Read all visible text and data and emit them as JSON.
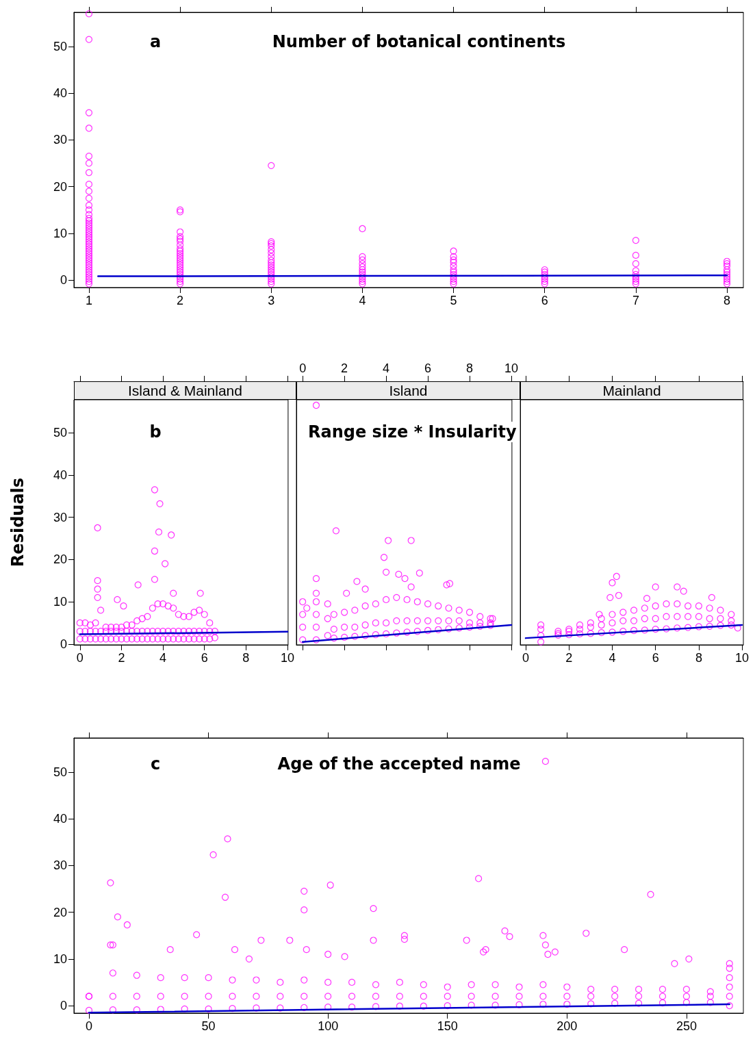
{
  "chart_data": [
    {
      "type": "scatter",
      "title": "Number of botanical continents",
      "annotations": [
        "a"
      ],
      "xlim": [
        0.835,
        8.18
      ],
      "xticks": [
        1,
        2,
        3,
        4,
        5,
        6,
        7,
        8
      ],
      "ylim": [
        -1.6,
        57.3
      ],
      "yticks": [
        0,
        10,
        20,
        30,
        40,
        50
      ],
      "marker": "circle",
      "series": [
        {
          "color": "#ff00ff",
          "x": [
            1,
            1,
            1,
            1,
            1,
            1,
            1,
            1,
            1,
            1,
            1,
            1,
            1,
            1,
            1,
            1,
            1,
            1,
            1,
            1,
            1,
            1,
            1,
            1,
            1,
            1,
            1,
            1,
            1,
            1,
            1,
            1,
            1,
            1,
            1,
            1,
            1,
            1,
            1,
            1,
            1,
            1,
            2,
            2,
            2,
            2,
            2,
            2,
            2,
            2,
            2,
            2,
            2,
            2,
            2,
            2,
            2,
            2,
            2,
            2,
            2,
            2,
            2,
            2,
            2,
            3,
            3,
            3,
            3,
            3,
            3,
            3,
            3,
            3,
            3,
            3,
            3,
            3,
            3,
            3,
            3,
            3,
            3,
            4,
            4,
            4,
            4,
            4,
            4,
            4,
            4,
            4,
            4,
            4,
            4,
            5,
            5,
            5,
            5,
            5,
            5,
            5,
            5,
            5,
            5,
            5,
            5,
            6,
            6,
            6,
            6,
            6,
            6,
            6,
            7,
            7,
            7,
            7,
            7,
            7,
            7,
            7,
            7,
            8,
            8,
            8,
            8,
            8,
            8,
            8,
            8,
            8,
            8
          ],
          "values": [
            -0.8,
            -0.3,
            0.2,
            0.7,
            1.2,
            1.7,
            2.2,
            2.7,
            3.2,
            3.7,
            4.2,
            4.7,
            5.2,
            5.7,
            6.2,
            6.7,
            7.2,
            7.7,
            8.2,
            8.7,
            9.2,
            9.7,
            10.2,
            10.7,
            11.2,
            11.7,
            12.2,
            12.7,
            13.2,
            14,
            15,
            16,
            17.5,
            19,
            20.5,
            23,
            25,
            26.5,
            32.5,
            35.8,
            51.5,
            57,
            -0.8,
            -0.3,
            0.2,
            0.7,
            1.2,
            1.7,
            2.2,
            2.7,
            3.2,
            3.7,
            4.2,
            4.7,
            5.2,
            5.7,
            6.2,
            6.7,
            7.5,
            8.3,
            8.8,
            9.3,
            10.3,
            14.6,
            15,
            -0.8,
            -0.3,
            0.2,
            0.7,
            1.2,
            1.7,
            2.2,
            2.7,
            3.2,
            3.7,
            4.2,
            5,
            5.8,
            6.5,
            7.3,
            7.8,
            8.2,
            24.5,
            -0.8,
            -0.3,
            0.2,
            0.7,
            1.2,
            1.7,
            2.2,
            2.8,
            3.5,
            4.3,
            5,
            11,
            -0.8,
            -0.3,
            0.2,
            0.7,
            1.2,
            1.7,
            2.2,
            3,
            3.8,
            4.3,
            5,
            6.2,
            -0.8,
            -0.3,
            0.2,
            0.7,
            1.2,
            1.7,
            2.2,
            -0.8,
            -0.3,
            0.2,
            0.7,
            1.2,
            2,
            3.5,
            5.3,
            8.5,
            -0.8,
            -0.3,
            0.2,
            0.7,
            1.2,
            1.7,
            2.2,
            3,
            3.5,
            4
          ]
        },
        {
          "type": "line",
          "marker": "none",
          "color": "#0000cc",
          "x": [
            1.1,
            8
          ],
          "values": [
            0.8,
            1.0
          ]
        }
      ]
    },
    {
      "type": "scatter",
      "title": "Island & Mainland",
      "ylabel": "Residuals",
      "annotations": [
        "b"
      ],
      "xlim": [
        -0.29,
        10.03
      ],
      "xticks": [
        0,
        2,
        4,
        6,
        8,
        10
      ],
      "ylim": [
        -0.2,
        57.8
      ],
      "yticks": [
        0,
        10,
        20,
        30,
        40,
        50
      ],
      "marker": "circle",
      "series": [
        {
          "color": "#ff00ff",
          "x": [
            0,
            0.25,
            0.5,
            0.75,
            1,
            1.25,
            1.5,
            1.75,
            2,
            2.25,
            2.5,
            2.75,
            3,
            3.25,
            3.5,
            3.75,
            4,
            4.25,
            4.5,
            4.75,
            5,
            5.25,
            5.5,
            5.75,
            6,
            6.25,
            0,
            0.25,
            0.5,
            0.75,
            1,
            1.25,
            1.5,
            1.75,
            2,
            2.25,
            2.5,
            2.75,
            3,
            3.25,
            3.5,
            3.75,
            4,
            4.25,
            4.5,
            4.75,
            5,
            5.25,
            5.5,
            5.75,
            6,
            6.25,
            0,
            0.25,
            0.5,
            0.75,
            1,
            1.25,
            1.5,
            1.75,
            2,
            2.25,
            2.5,
            2.75,
            3,
            3.25,
            3.5,
            3.75,
            4,
            4.25,
            4.5,
            4.75,
            5,
            5.25,
            5.5,
            5.75,
            6,
            6.25,
            0.85,
            0.85,
            0.85,
            0.85,
            3.6,
            3.85,
            3.8,
            4.4,
            3.6,
            4.1,
            3.6,
            2.8,
            1.8,
            2.1,
            5.8,
            4.5,
            6.5,
            6.5
          ],
          "values": [
            1.2,
            1.2,
            1.2,
            1.2,
            1.2,
            1.2,
            1.2,
            1.2,
            1.2,
            1.2,
            1.2,
            1.2,
            1.2,
            1.2,
            1.2,
            1.2,
            1.2,
            1.2,
            1.2,
            1.2,
            1.2,
            1.2,
            1.2,
            1.2,
            1.2,
            1.2,
            3,
            3,
            3,
            3,
            3,
            3,
            3,
            3,
            3,
            3,
            3,
            3,
            3,
            3,
            3,
            3,
            3,
            3,
            3,
            3,
            3,
            3,
            3,
            3,
            3,
            3,
            5,
            5,
            4.5,
            5,
            8,
            4,
            4,
            4,
            4,
            4.5,
            4.5,
            5.5,
            6,
            6.5,
            8.5,
            9.5,
            9.5,
            9,
            8.5,
            7,
            6.5,
            6.5,
            7.5,
            8,
            7,
            5,
            11,
            13,
            15,
            27.5,
            36.5,
            33.2,
            26.5,
            25.8,
            22,
            19,
            15.3,
            14,
            10.5,
            9,
            12,
            12,
            3,
            1.5
          ]
        },
        {
          "type": "line",
          "marker": "none",
          "color": "#0000cc",
          "x": [
            0,
            10
          ],
          "values": [
            2.3,
            2.9
          ]
        }
      ]
    },
    {
      "type": "scatter",
      "title": "Island",
      "annotations": [
        "Range size * Insularity"
      ],
      "tick_labels": "x",
      "xlim": [
        -0.3,
        10.03
      ],
      "xticks": [
        0,
        2,
        4,
        6,
        8,
        10
      ],
      "ylim": [
        -0.2,
        57.8
      ],
      "marker": "circle",
      "series": [
        {
          "color": "#ff00ff",
          "x": [
            1.5,
            2,
            2.5,
            3,
            3.5,
            4,
            4.5,
            5,
            5.5,
            6,
            6.5,
            7,
            7.5,
            8,
            8.5,
            9,
            1.5,
            2,
            2.5,
            3,
            3.5,
            4,
            4.5,
            5,
            5.5,
            6,
            6.5,
            7,
            7.5,
            8,
            8.5,
            9,
            1.5,
            2,
            2.5,
            3,
            3.5,
            4,
            4.5,
            5,
            5.5,
            6,
            6.5,
            7,
            7.5,
            8,
            8.5,
            9,
            0,
            0,
            0,
            0,
            0.2,
            0.65,
            0.65,
            0.65,
            0.65,
            0.65,
            0.65,
            0.65,
            1.2,
            1.2,
            1.2,
            1.6,
            4.1,
            5.2,
            3.9,
            4,
            4.6,
            4.9,
            5.6,
            5.2,
            6.9,
            7.05,
            2.1,
            2.6,
            3,
            9.1
          ],
          "values": [
            1.4,
            1.6,
            1.8,
            2,
            2.2,
            2.4,
            2.6,
            2.8,
            3,
            3.2,
            3.4,
            3.6,
            3.8,
            4,
            4.2,
            4.4,
            3.5,
            4,
            4,
            4.5,
            5,
            5,
            5.5,
            5.5,
            5.5,
            5.5,
            5.5,
            5.5,
            5.5,
            5,
            5,
            5,
            7,
            7.5,
            8,
            9,
            9.5,
            10.5,
            11,
            10.5,
            10,
            9.5,
            9,
            8.5,
            8,
            7.5,
            6.5,
            6,
            1,
            4,
            7,
            10,
            8.5,
            1,
            4,
            7,
            10,
            12,
            15.5,
            56.5,
            2,
            6,
            9.5,
            26.8,
            24.5,
            24.5,
            20.5,
            17,
            16.5,
            15.5,
            16.8,
            13.5,
            14,
            14.3,
            12,
            14.8,
            13,
            6
          ]
        },
        {
          "type": "line",
          "marker": "none",
          "color": "#0000cc",
          "x": [
            0,
            10
          ],
          "values": [
            0.5,
            4.5
          ]
        }
      ]
    },
    {
      "type": "scatter",
      "title": "Mainland",
      "tick_labels": "x",
      "xlim": [
        -0.25,
        10.06
      ],
      "xticks": [
        0,
        2,
        4,
        6,
        8,
        10
      ],
      "ylim": [
        -0.2,
        57.8
      ],
      "marker": "circle",
      "series": [
        {
          "color": "#ff00ff",
          "x": [
            1.5,
            2,
            2.5,
            3,
            3.5,
            4,
            4.5,
            5,
            5.5,
            6,
            6.5,
            7,
            7.5,
            8,
            8.5,
            9,
            9.5,
            1.5,
            2,
            2.5,
            3,
            3.5,
            4,
            4.5,
            5,
            5.5,
            6,
            6.5,
            7,
            7.5,
            8,
            8.5,
            9,
            9.5,
            1.5,
            2,
            2.5,
            3,
            3.5,
            4,
            4.5,
            5,
            5.5,
            6,
            6.5,
            7,
            7.5,
            8,
            8.5,
            9,
            9.5,
            0.7,
            0.7,
            0.7,
            0.7,
            4.2,
            4,
            3.9,
            4.3,
            6,
            7,
            7.3,
            8.6,
            5.6,
            3.4,
            9.8
          ],
          "values": [
            2.1,
            2.2,
            2.4,
            2.5,
            2.7,
            2.8,
            3,
            3.2,
            3.3,
            3.5,
            3.6,
            3.8,
            3.9,
            4.1,
            4.2,
            4.4,
            4.5,
            2.5,
            3,
            3.5,
            4,
            4.5,
            5,
            5.5,
            5.5,
            6,
            6,
            6.5,
            6.5,
            6.5,
            6.5,
            6,
            6,
            5.5,
            3,
            3.5,
            4.5,
            5,
            6,
            7,
            7.5,
            8,
            8.5,
            9,
            9.5,
            9.5,
            9,
            9,
            8.5,
            8,
            7,
            0.5,
            2,
            3.5,
            4.5,
            16,
            14.5,
            11,
            11.5,
            13.5,
            13.5,
            12.5,
            11,
            10.8,
            7,
            3.8
          ]
        },
        {
          "type": "line",
          "marker": "none",
          "color": "#0000cc",
          "x": [
            0,
            10
          ],
          "values": [
            1.4,
            4.5
          ]
        }
      ]
    },
    {
      "type": "scatter",
      "title": "Age of the accepted name",
      "annotations": [
        "c"
      ],
      "xlim": [
        -6.3,
        273.8
      ],
      "xticks": [
        0,
        50,
        100,
        150,
        200,
        250
      ],
      "ylim": [
        -1.6,
        57.3
      ],
      "yticks": [
        0,
        10,
        20,
        30,
        40,
        50
      ],
      "marker": "circle",
      "series": [
        {
          "color": "#ff00ff",
          "x": [
            0,
            10,
            20,
            30,
            40,
            50,
            60,
            70,
            80,
            90,
            100,
            110,
            120,
            130,
            140,
            150,
            160,
            170,
            180,
            190,
            200,
            210,
            220,
            230,
            240,
            250,
            260,
            0,
            10,
            20,
            30,
            40,
            50,
            60,
            70,
            80,
            90,
            100,
            110,
            120,
            130,
            140,
            150,
            160,
            170,
            180,
            190,
            200,
            210,
            220,
            230,
            240,
            250,
            260,
            0,
            10,
            20,
            30,
            40,
            50,
            60,
            70,
            80,
            90,
            100,
            110,
            120,
            130,
            140,
            150,
            160,
            170,
            180,
            190,
            200,
            210,
            220,
            230,
            240,
            250,
            260,
            268,
            268,
            268,
            268,
            268,
            268,
            9,
            12,
            16,
            9,
            10,
            45,
            52,
            57,
            58,
            61,
            72,
            84,
            90,
            90,
            91,
            101,
            100,
            107,
            119,
            119,
            132,
            132,
            158,
            163,
            165,
            166,
            174,
            176,
            190,
            191,
            192,
            195,
            208,
            224,
            235,
            245,
            251,
            191,
            34,
            67
          ],
          "values": [
            -1,
            -0.9,
            -0.9,
            -0.8,
            -0.7,
            -0.7,
            -0.6,
            -0.5,
            -0.5,
            -0.4,
            -0.3,
            -0.3,
            -0.2,
            -0.1,
            -0.1,
            0,
            0.1,
            0.1,
            0.2,
            0.3,
            0.3,
            0.4,
            0.5,
            0.5,
            0.6,
            0.7,
            0.7,
            2,
            2,
            2,
            2,
            2,
            2,
            2,
            2,
            2,
            2,
            2,
            2,
            2,
            2,
            2,
            2,
            2,
            2,
            2,
            2,
            2,
            2,
            2,
            2,
            2,
            2,
            2,
            2,
            7,
            6.5,
            6,
            6,
            6,
            5.5,
            5.5,
            5,
            5.5,
            5,
            5,
            4.5,
            5,
            4.5,
            4,
            4.5,
            4.5,
            4,
            4.5,
            4,
            3.5,
            3.5,
            3.5,
            3.5,
            3.5,
            3,
            0,
            2,
            4,
            6,
            8,
            9,
            26.3,
            19,
            17.3,
            13,
            13,
            15.2,
            32.3,
            23.2,
            35.7,
            12,
            14,
            14,
            20.5,
            24.5,
            12,
            25.8,
            11,
            10.5,
            20.8,
            14,
            15,
            14.2,
            14,
            27.2,
            11.5,
            12,
            16,
            14.8,
            15,
            13,
            11,
            11.5,
            15.5,
            12,
            23.8,
            9,
            10,
            52.3,
            12,
            10
          ]
        },
        {
          "type": "line",
          "marker": "none",
          "color": "#0000cc",
          "x": [
            0,
            268
          ],
          "values": [
            -1.5,
            0.3
          ]
        }
      ]
    }
  ]
}
